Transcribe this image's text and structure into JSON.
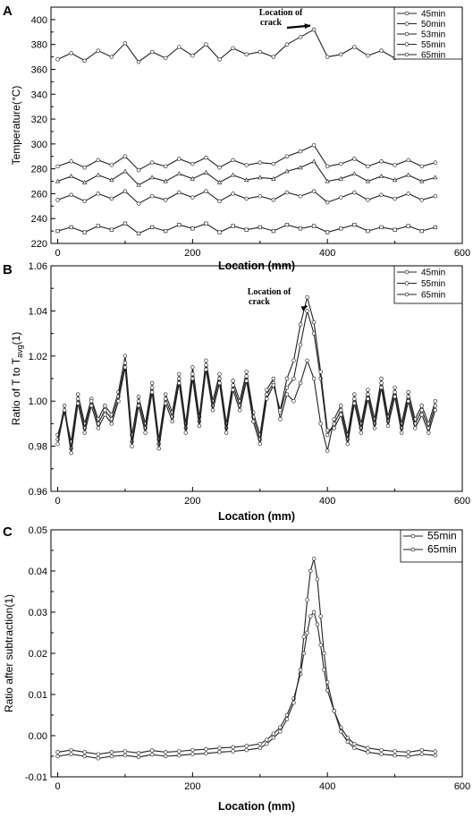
{
  "chart_data": [
    {
      "panel": "A",
      "type": "line",
      "xlabel": "Location (mm)",
      "ylabel": "Temperature(°C)",
      "xlim": [
        -10,
        600
      ],
      "ylim": [
        220,
        410
      ],
      "xticks": [
        0,
        200,
        400,
        600
      ],
      "yticks": [
        220,
        240,
        260,
        280,
        300,
        320,
        340,
        360,
        380,
        400
      ],
      "annotation": [
        "Location of",
        "crack"
      ],
      "annotation_target": [
        380,
        393
      ],
      "legend_position": "top-right",
      "grid": false,
      "series": [
        {
          "name": "45min",
          "x": [
            0,
            20,
            40,
            60,
            80,
            100,
            120,
            140,
            160,
            180,
            200,
            220,
            240,
            260,
            280,
            300,
            320,
            340,
            360,
            380,
            400,
            420,
            440,
            460,
            480,
            500,
            520,
            540,
            560
          ],
          "y": [
            230,
            233,
            229,
            234,
            231,
            236,
            228,
            233,
            230,
            235,
            232,
            236,
            229,
            234,
            231,
            233,
            230,
            235,
            232,
            234,
            229,
            232,
            235,
            230,
            233,
            231,
            234,
            230,
            233
          ]
        },
        {
          "name": "50min",
          "x": [
            0,
            20,
            40,
            60,
            80,
            100,
            120,
            140,
            160,
            180,
            200,
            220,
            240,
            260,
            280,
            300,
            320,
            340,
            360,
            380,
            400,
            420,
            440,
            460,
            480,
            500,
            520,
            540,
            560
          ],
          "y": [
            255,
            259,
            254,
            260,
            256,
            262,
            252,
            258,
            255,
            261,
            257,
            262,
            254,
            260,
            256,
            258,
            255,
            261,
            258,
            262,
            253,
            257,
            261,
            255,
            259,
            256,
            260,
            255,
            258
          ]
        },
        {
          "name": "53min",
          "x": [
            0,
            20,
            40,
            60,
            80,
            100,
            120,
            140,
            160,
            180,
            200,
            220,
            240,
            260,
            280,
            300,
            320,
            340,
            360,
            380,
            400,
            420,
            440,
            460,
            480,
            500,
            520,
            540,
            560
          ],
          "y": [
            270,
            274,
            269,
            275,
            271,
            278,
            267,
            273,
            270,
            276,
            272,
            277,
            269,
            275,
            271,
            273,
            272,
            278,
            281,
            286,
            270,
            272,
            276,
            270,
            274,
            271,
            275,
            270,
            273
          ]
        },
        {
          "name": "55min",
          "x": [
            0,
            20,
            40,
            60,
            80,
            100,
            120,
            140,
            160,
            180,
            200,
            220,
            240,
            260,
            280,
            300,
            320,
            340,
            360,
            380,
            400,
            420,
            440,
            460,
            480,
            500,
            520,
            540,
            560
          ],
          "y": [
            282,
            286,
            281,
            287,
            283,
            290,
            279,
            285,
            282,
            288,
            284,
            289,
            281,
            287,
            283,
            285,
            284,
            290,
            294,
            299,
            282,
            284,
            288,
            282,
            286,
            283,
            287,
            282,
            285
          ]
        },
        {
          "name": "65min",
          "x": [
            0,
            20,
            40,
            60,
            80,
            100,
            120,
            140,
            160,
            180,
            200,
            220,
            240,
            260,
            280,
            300,
            320,
            340,
            360,
            380,
            400,
            420,
            440,
            460,
            480,
            500,
            520,
            540,
            560
          ],
          "y": [
            368,
            373,
            367,
            375,
            370,
            381,
            366,
            374,
            369,
            378,
            371,
            380,
            368,
            377,
            372,
            374,
            370,
            380,
            386,
            392,
            370,
            372,
            378,
            371,
            375,
            369,
            377,
            370,
            375
          ]
        }
      ]
    },
    {
      "panel": "B",
      "type": "line",
      "xlabel": "Location (mm)",
      "ylabel": "Ratio of T to T",
      "ylabel_sub": "avg",
      "ylabel_suffix": "(1)",
      "xlim": [
        -10,
        600
      ],
      "ylim": [
        0.96,
        1.06
      ],
      "xticks": [
        0,
        200,
        400,
        600
      ],
      "yticks": [
        0.96,
        0.98,
        1.0,
        1.02,
        1.04,
        1.06
      ],
      "annotation": [
        "Location of",
        "crack"
      ],
      "annotation_target": [
        375,
        1.041
      ],
      "legend_position": "top-right",
      "grid": false,
      "series": [
        {
          "name": "45min",
          "x": [
            0,
            10,
            20,
            30,
            40,
            50,
            60,
            70,
            80,
            90,
            100,
            110,
            120,
            130,
            140,
            150,
            160,
            170,
            180,
            190,
            200,
            210,
            220,
            230,
            240,
            250,
            260,
            270,
            280,
            290,
            300,
            310,
            320,
            330,
            340,
            350,
            360,
            370,
            380,
            390,
            400,
            410,
            420,
            430,
            440,
            450,
            460,
            470,
            480,
            490,
            500,
            510,
            520,
            530,
            540,
            550,
            560
          ],
          "y": [
            0.985,
            0.995,
            0.982,
            1.003,
            0.99,
            1.001,
            0.992,
            0.998,
            0.994,
            1.004,
            1.02,
            0.985,
            1.002,
            0.99,
            1.008,
            0.983,
            1.003,
            0.995,
            1.012,
            0.99,
            1.015,
            0.993,
            1.018,
            1.0,
            1.012,
            0.99,
            1.009,
            1.0,
            1.013,
            0.995,
            0.985,
            1.005,
            1.01,
            0.992,
            1.003,
            1.0,
            1.008,
            1.018,
            1.01,
            0.99,
            0.978,
            0.992,
            0.998,
            0.985,
            1.003,
            0.99,
            1.005,
            0.992,
            1.01,
            0.993,
            1.006,
            0.99,
            1.004,
            0.992,
            0.998,
            0.99,
            1.0
          ]
        },
        {
          "name": "55min",
          "x": [
            0,
            10,
            20,
            30,
            40,
            50,
            60,
            70,
            80,
            90,
            100,
            110,
            120,
            130,
            140,
            150,
            160,
            170,
            180,
            190,
            200,
            210,
            220,
            230,
            240,
            250,
            260,
            270,
            280,
            290,
            300,
            310,
            320,
            330,
            340,
            350,
            360,
            370,
            380,
            390,
            400,
            410,
            420,
            430,
            440,
            450,
            460,
            470,
            480,
            490,
            500,
            510,
            520,
            530,
            540,
            550,
            560
          ],
          "y": [
            0.983,
            0.998,
            0.979,
            1.001,
            0.988,
            1.0,
            0.99,
            0.996,
            0.992,
            1.002,
            1.017,
            0.982,
            1.0,
            0.988,
            1.006,
            0.981,
            1.001,
            0.993,
            1.01,
            0.988,
            1.012,
            0.991,
            1.016,
            0.998,
            1.01,
            0.988,
            1.007,
            0.998,
            1.011,
            0.993,
            0.983,
            1.003,
            1.008,
            0.995,
            1.006,
            1.01,
            1.025,
            1.04,
            1.03,
            1.01,
            0.985,
            0.99,
            0.996,
            0.983,
            1.001,
            0.988,
            1.003,
            0.99,
            1.008,
            0.991,
            1.004,
            0.988,
            1.002,
            0.99,
            0.996,
            0.988,
            0.998
          ]
        },
        {
          "name": "65min",
          "x": [
            0,
            10,
            20,
            30,
            40,
            50,
            60,
            70,
            80,
            90,
            100,
            110,
            120,
            130,
            140,
            150,
            160,
            170,
            180,
            190,
            200,
            210,
            220,
            230,
            240,
            250,
            260,
            270,
            280,
            290,
            300,
            310,
            320,
            330,
            340,
            350,
            360,
            370,
            380,
            390,
            400,
            410,
            420,
            430,
            440,
            450,
            460,
            470,
            480,
            490,
            500,
            510,
            520,
            530,
            540,
            550,
            560
          ],
          "y": [
            0.981,
            0.996,
            0.977,
            0.999,
            0.986,
            0.998,
            0.988,
            0.994,
            0.99,
            1.0,
            1.015,
            0.98,
            0.998,
            0.986,
            1.004,
            0.979,
            0.999,
            0.991,
            1.008,
            0.986,
            1.01,
            0.989,
            1.014,
            0.996,
            1.008,
            0.986,
            1.005,
            0.996,
            1.009,
            0.991,
            0.981,
            1.001,
            1.007,
            0.996,
            1.01,
            1.018,
            1.034,
            1.046,
            1.035,
            1.013,
            0.987,
            0.988,
            0.994,
            0.981,
            0.999,
            0.986,
            1.001,
            0.988,
            1.006,
            0.989,
            1.002,
            0.986,
            1.0,
            0.988,
            0.994,
            0.986,
            0.996
          ]
        }
      ]
    },
    {
      "panel": "C",
      "type": "line",
      "xlabel": "Location (mm)",
      "ylabel": "Ratio after subtraction(1)",
      "xlim": [
        -10,
        600
      ],
      "ylim": [
        -0.01,
        0.05
      ],
      "xticks": [
        0,
        200,
        400,
        600
      ],
      "yticks": [
        -0.01,
        0.0,
        0.01,
        0.02,
        0.03,
        0.04,
        0.05
      ],
      "ytick_labels": [
        "-0.01",
        "0.00",
        "0.01",
        "0.02",
        "0.03",
        "0.04",
        "0.05"
      ],
      "legend_position": "top-right",
      "grid": false,
      "series": [
        {
          "name": "55min",
          "x": [
            0,
            20,
            40,
            60,
            80,
            100,
            120,
            140,
            160,
            180,
            200,
            220,
            240,
            260,
            280,
            300,
            310,
            320,
            330,
            340,
            350,
            360,
            365,
            370,
            375,
            380,
            385,
            390,
            395,
            400,
            410,
            420,
            430,
            440,
            460,
            480,
            500,
            520,
            540,
            560
          ],
          "y": [
            -0.004,
            -0.0035,
            -0.004,
            -0.0045,
            -0.004,
            -0.0038,
            -0.0042,
            -0.0036,
            -0.004,
            -0.0038,
            -0.0035,
            -0.0033,
            -0.003,
            -0.0028,
            -0.0025,
            -0.002,
            -0.001,
            0.0005,
            0.002,
            0.005,
            0.009,
            0.015,
            0.02,
            0.025,
            0.029,
            0.03,
            0.027,
            0.022,
            0.016,
            0.011,
            0.006,
            0.002,
            -0.0005,
            -0.002,
            -0.003,
            -0.0035,
            -0.0038,
            -0.004,
            -0.0035,
            -0.0038
          ]
        },
        {
          "name": "65min",
          "x": [
            0,
            20,
            40,
            60,
            80,
            100,
            120,
            140,
            160,
            180,
            200,
            220,
            240,
            260,
            280,
            300,
            310,
            320,
            330,
            340,
            350,
            360,
            365,
            370,
            375,
            380,
            385,
            390,
            395,
            400,
            410,
            420,
            430,
            440,
            460,
            480,
            500,
            520,
            540,
            560
          ],
          "y": [
            -0.005,
            -0.0045,
            -0.005,
            -0.0055,
            -0.005,
            -0.0048,
            -0.0052,
            -0.0046,
            -0.005,
            -0.0048,
            -0.0045,
            -0.0043,
            -0.004,
            -0.0038,
            -0.0035,
            -0.003,
            -0.002,
            -0.0005,
            0.001,
            0.004,
            0.008,
            0.016,
            0.024,
            0.033,
            0.04,
            0.043,
            0.038,
            0.029,
            0.02,
            0.013,
            0.006,
            0.001,
            -0.0015,
            -0.003,
            -0.004,
            -0.0045,
            -0.0048,
            -0.005,
            -0.0045,
            -0.0048
          ]
        }
      ]
    }
  ]
}
